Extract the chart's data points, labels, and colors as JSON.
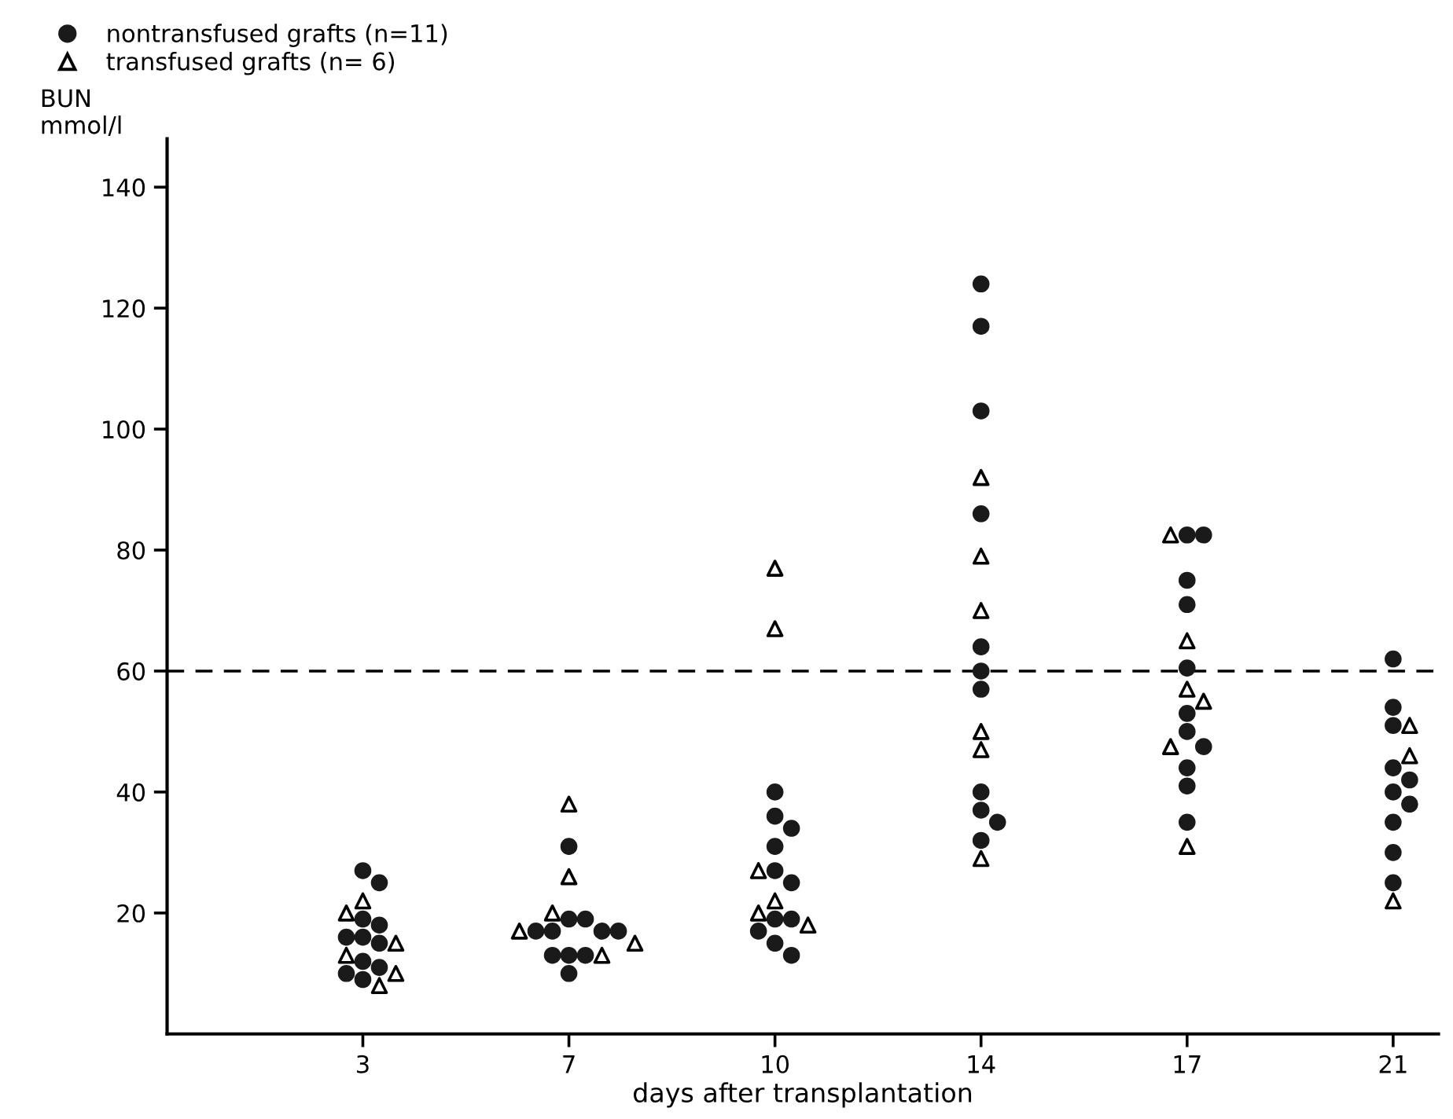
{
  "chart_data": {
    "type": "scatter",
    "xlabel": "days after transplantation",
    "ylabel": "BUN\nmmol/l",
    "categories": [
      "3",
      "7",
      "10",
      "14",
      "17",
      "21"
    ],
    "ylim": [
      0,
      148
    ],
    "yticks": [
      20,
      40,
      60,
      80,
      100,
      120,
      140
    ],
    "grid": false,
    "legend": "top left",
    "ref_lines": [
      {
        "axis": "y",
        "value": 60,
        "line_style": "dashed",
        "color": "#000000"
      }
    ],
    "series": [
      {
        "name": "nontransfused grafts (n=11)",
        "color": "#1a1a1a",
        "marker": "circle",
        "x": [
          "3",
          "3",
          "3",
          "3",
          "3",
          "3",
          "3",
          "3",
          "3",
          "3",
          "3",
          "7",
          "7",
          "7",
          "7",
          "7",
          "7",
          "7",
          "7",
          "7",
          "7",
          "7",
          "10",
          "10",
          "10",
          "10",
          "10",
          "10",
          "10",
          "10",
          "10",
          "10",
          "10",
          "14",
          "14",
          "14",
          "14",
          "14",
          "14",
          "14",
          "14",
          "14",
          "14",
          "14",
          "17",
          "17",
          "17",
          "17",
          "17",
          "17",
          "17",
          "17",
          "17",
          "17",
          "17",
          "21",
          "21",
          "21",
          "21",
          "21",
          "21",
          "21",
          "21",
          "21",
          "21"
        ],
        "values": [
          27,
          25,
          19,
          18,
          16,
          16,
          15,
          12,
          11,
          10,
          9,
          31,
          19,
          19,
          17,
          17,
          17,
          17,
          13,
          13,
          13,
          10,
          40,
          36,
          34,
          31,
          27,
          25,
          19,
          19,
          17,
          15,
          13,
          124,
          117,
          103,
          86,
          64,
          60,
          57,
          40,
          37,
          35,
          32,
          82.5,
          82.5,
          75,
          71,
          60.5,
          53,
          50,
          47.5,
          44,
          41,
          35,
          62,
          54,
          51,
          44,
          42,
          40,
          38,
          35,
          30,
          25
        ]
      },
      {
        "name": "transfused grafts (n= 6)",
        "color": "#000000",
        "marker": "triangle",
        "x": [
          "3",
          "3",
          "3",
          "3",
          "3",
          "3",
          "7",
          "7",
          "7",
          "7",
          "7",
          "7",
          "10",
          "10",
          "10",
          "10",
          "10",
          "10",
          "14",
          "14",
          "14",
          "14",
          "14",
          "14",
          "17",
          "17",
          "17",
          "17",
          "17",
          "17",
          "21",
          "21",
          "21"
        ],
        "values": [
          22,
          20,
          15,
          13,
          10,
          8,
          38,
          26,
          20,
          17,
          15,
          13,
          77,
          67,
          27,
          22,
          20,
          18,
          92,
          79,
          70,
          50,
          47,
          29,
          82.5,
          65,
          57,
          55,
          47.5,
          31,
          51,
          46,
          22
        ]
      }
    ]
  }
}
